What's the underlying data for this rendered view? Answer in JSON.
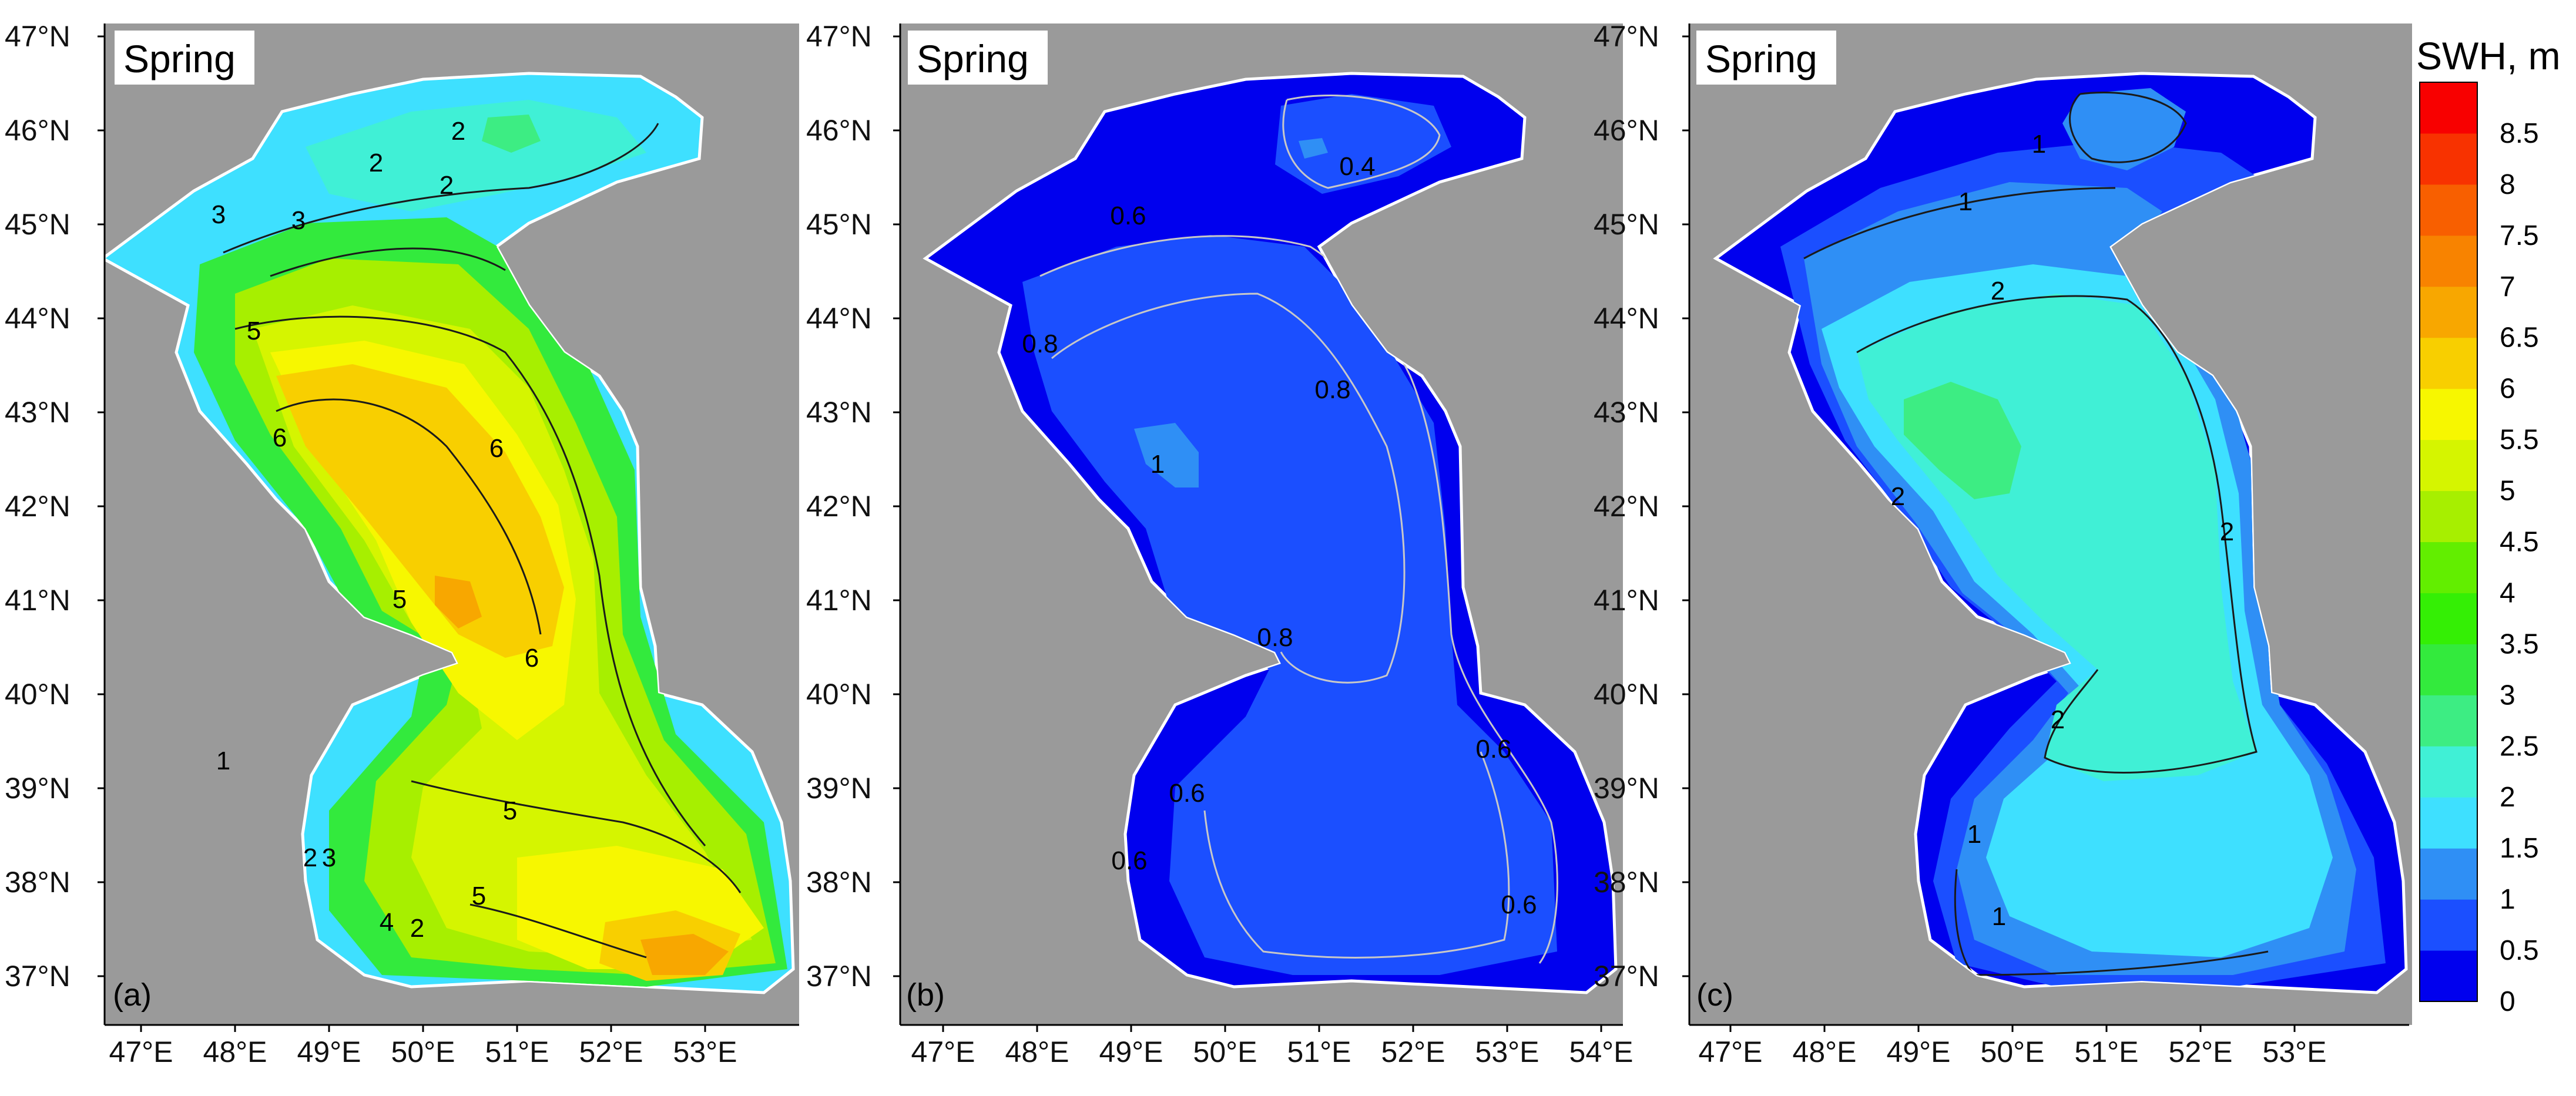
{
  "colorbar": {
    "title": "SWH, m",
    "levels": [
      "0",
      "0.5",
      "1",
      "1.5",
      "2",
      "2.5",
      "3",
      "3.5",
      "4",
      "4.5",
      "5",
      "5.5",
      "6",
      "6.5",
      "7",
      "7.5",
      "8",
      "8.5"
    ],
    "colors": [
      "#0000ee",
      "#1b4fff",
      "#2f8ff5",
      "#3ee0ff",
      "#40f0d6",
      "#3ded83",
      "#33ea3d",
      "#34ef05",
      "#62ee00",
      "#a7ef00",
      "#d5f500",
      "#f7f700",
      "#f8cf00",
      "#f8a700",
      "#f88300",
      "#f85f00",
      "#f83200",
      "#f80000"
    ]
  },
  "axes": {
    "lat_labels": [
      "47°N",
      "46°N",
      "45°N",
      "44°N",
      "43°N",
      "42°N",
      "41°N",
      "40°N",
      "39°N",
      "38°N",
      "37°N"
    ],
    "lon_labels_a": [
      "47°E",
      "48°E",
      "49°E",
      "50°E",
      "51°E",
      "52°E",
      "53°E"
    ],
    "lon_labels_b": [
      "47°E",
      "48°E",
      "49°E",
      "50°E",
      "51°E",
      "52°E",
      "53°E",
      "54°E"
    ],
    "lon_labels_c": [
      "47°E",
      "48°E",
      "49°E",
      "50°E",
      "51°E",
      "52°E",
      "53°E"
    ]
  },
  "land_color": "#9a9a9a",
  "panels": [
    {
      "id": "a",
      "title": "Spring",
      "letter": "(a)",
      "contour_labels": [
        "2",
        "2",
        "2",
        "3",
        "3",
        "5",
        "6",
        "6",
        "6",
        "5",
        "5",
        "5",
        "4",
        "3",
        "2",
        "1",
        "2"
      ]
    },
    {
      "id": "b",
      "title": "Spring",
      "letter": "(b)",
      "contour_labels": [
        "0.4",
        "0.6",
        "0.8",
        "0.8",
        "1",
        "0.8",
        "0.6",
        "0.6",
        "0.6",
        "0.6"
      ]
    },
    {
      "id": "c",
      "title": "Spring",
      "letter": "(c)",
      "contour_labels": [
        "1",
        "1",
        "2",
        "2",
        "2",
        "2",
        "1",
        "1"
      ]
    }
  ]
}
